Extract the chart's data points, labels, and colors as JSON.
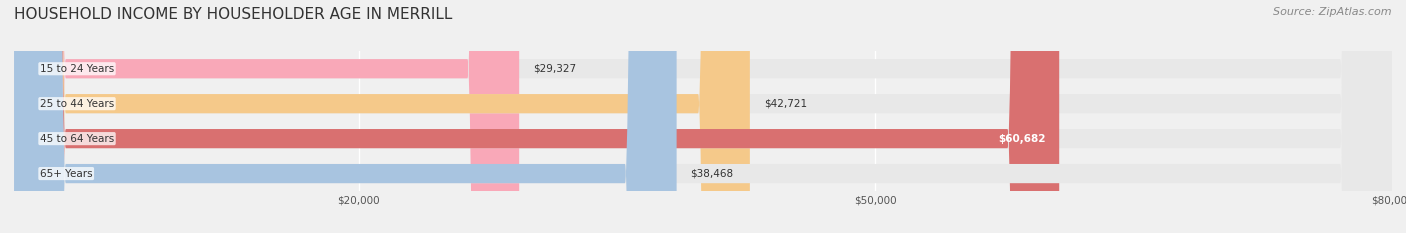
{
  "title": "HOUSEHOLD INCOME BY HOUSEHOLDER AGE IN MERRILL",
  "source": "Source: ZipAtlas.com",
  "categories": [
    "15 to 24 Years",
    "25 to 44 Years",
    "45 to 64 Years",
    "65+ Years"
  ],
  "values": [
    29327,
    42721,
    60682,
    38468
  ],
  "bar_colors": [
    "#f9a8b8",
    "#f5c98a",
    "#d97070",
    "#a8c4e0"
  ],
  "label_colors": [
    "#333333",
    "#333333",
    "#ffffff",
    "#333333"
  ],
  "xlim": [
    0,
    80000
  ],
  "xticks": [
    20000,
    50000,
    80000
  ],
  "xtick_labels": [
    "$20,000",
    "$50,000",
    "$80,000"
  ],
  "background_color": "#f0f0f0",
  "bar_background_color": "#e8e8e8",
  "title_fontsize": 11,
  "source_fontsize": 8,
  "bar_height": 0.55
}
